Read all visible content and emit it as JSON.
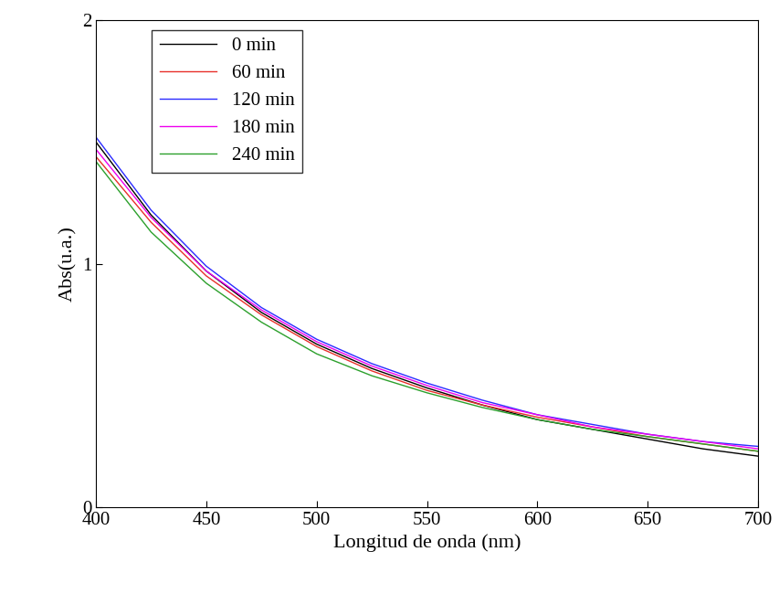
{
  "chart_data": {
    "type": "line",
    "x_label": "Longitud de onda (nm)",
    "y_label": "Abs(u.a.)",
    "x": [
      400,
      425,
      450,
      475,
      500,
      525,
      550,
      575,
      600,
      625,
      650,
      675,
      700
    ],
    "series": [
      {
        "name": "0 min",
        "color": "#000000",
        "values": [
          1.5,
          1.2,
          0.97,
          0.8,
          0.67,
          0.57,
          0.49,
          0.42,
          0.36,
          0.32,
          0.28,
          0.24,
          0.21
        ]
      },
      {
        "name": "60 min",
        "color": "#e8302a",
        "values": [
          1.44,
          1.17,
          0.95,
          0.79,
          0.66,
          0.56,
          0.48,
          0.42,
          0.37,
          0.33,
          0.29,
          0.26,
          0.23
        ]
      },
      {
        "name": "120 min",
        "color": "#2b2bff",
        "values": [
          1.52,
          1.22,
          0.99,
          0.82,
          0.69,
          0.59,
          0.51,
          0.44,
          0.38,
          0.34,
          0.3,
          0.27,
          0.25
        ]
      },
      {
        "name": "180 min",
        "color": "#ee00ee",
        "values": [
          1.47,
          1.19,
          0.97,
          0.81,
          0.68,
          0.58,
          0.5,
          0.43,
          0.38,
          0.33,
          0.3,
          0.27,
          0.24
        ]
      },
      {
        "name": "240 min",
        "color": "#2ca02c",
        "values": [
          1.42,
          1.13,
          0.92,
          0.76,
          0.63,
          0.54,
          0.47,
          0.41,
          0.36,
          0.32,
          0.29,
          0.26,
          0.23
        ]
      }
    ],
    "xlim": [
      400,
      700
    ],
    "xticks": [
      400,
      450,
      500,
      550,
      600,
      650,
      700
    ],
    "ylim": [
      0,
      2
    ],
    "yticks": [
      0,
      1,
      2
    ],
    "legend": "upper left",
    "grid": false
  }
}
